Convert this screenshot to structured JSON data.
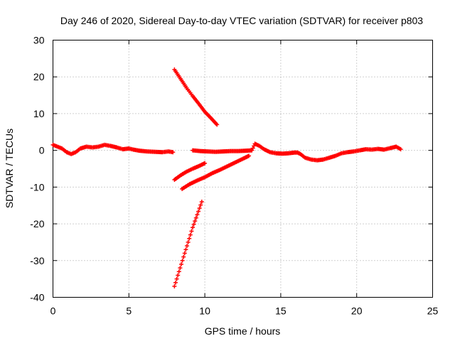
{
  "chart_data": {
    "type": "scatter",
    "title": "Day 246 of 2020, Sidereal Day-to-day VTEC variation (SDTVAR) for receiver p803",
    "xlabel": "GPS time / hours",
    "ylabel": "SDTVAR / TECUs",
    "xlim": [
      0,
      25
    ],
    "ylim": [
      -40,
      30
    ],
    "xticks": [
      0,
      5,
      10,
      15,
      20,
      25
    ],
    "yticks": [
      -40,
      -30,
      -20,
      -10,
      0,
      10,
      20,
      30
    ],
    "grid": true,
    "marker": "plus",
    "color": "#ff0000",
    "series": [
      {
        "points": [
          [
            0.0,
            1.5
          ],
          [
            0.3,
            1.0
          ],
          [
            0.6,
            0.5
          ],
          [
            0.9,
            -0.5
          ],
          [
            1.2,
            -1.0
          ],
          [
            1.5,
            -0.5
          ],
          [
            1.8,
            0.5
          ],
          [
            2.2,
            1.0
          ],
          [
            2.6,
            0.8
          ],
          [
            3.0,
            1.0
          ],
          [
            3.4,
            1.5
          ],
          [
            3.8,
            1.2
          ],
          [
            4.2,
            0.8
          ],
          [
            4.6,
            0.3
          ],
          [
            5.0,
            0.5
          ],
          [
            5.3,
            0.2
          ],
          [
            5.7,
            -0.1
          ],
          [
            6.2,
            -0.3
          ],
          [
            6.7,
            -0.4
          ],
          [
            7.2,
            -0.5
          ],
          [
            7.6,
            -0.3
          ],
          [
            7.9,
            -0.5
          ]
        ]
      },
      {
        "points": [
          [
            8.0,
            22.0
          ],
          [
            8.4,
            19.5
          ],
          [
            8.8,
            17.0
          ],
          [
            9.2,
            14.8
          ],
          [
            9.6,
            12.7
          ],
          [
            10.0,
            10.5
          ],
          [
            10.4,
            8.8
          ],
          [
            10.8,
            7.0
          ]
        ]
      },
      {
        "points": [
          [
            8.0,
            -37.0
          ],
          [
            8.3,
            -33.0
          ],
          [
            8.6,
            -29.0
          ],
          [
            8.9,
            -25.0
          ],
          [
            9.2,
            -21.0
          ],
          [
            9.5,
            -17.5
          ],
          [
            9.8,
            -14.0
          ]
        ]
      },
      {
        "points": [
          [
            8.0,
            -8.0
          ],
          [
            8.4,
            -6.8
          ],
          [
            8.8,
            -5.8
          ],
          [
            9.2,
            -5.0
          ],
          [
            9.6,
            -4.3
          ],
          [
            10.0,
            -3.5
          ]
        ]
      },
      {
        "points": [
          [
            8.5,
            -10.5
          ],
          [
            9.0,
            -9.2
          ],
          [
            9.5,
            -8.2
          ],
          [
            10.0,
            -7.3
          ],
          [
            10.5,
            -6.2
          ],
          [
            11.0,
            -5.3
          ],
          [
            11.5,
            -4.3
          ],
          [
            12.0,
            -3.3
          ],
          [
            12.5,
            -2.3
          ],
          [
            12.9,
            -1.5
          ]
        ]
      },
      {
        "points": [
          [
            9.2,
            0.0
          ],
          [
            9.7,
            -0.2
          ],
          [
            10.2,
            -0.3
          ],
          [
            10.7,
            -0.4
          ],
          [
            11.2,
            -0.3
          ],
          [
            11.7,
            -0.2
          ],
          [
            12.2,
            -0.2
          ],
          [
            12.7,
            -0.1
          ],
          [
            13.1,
            0.0
          ],
          [
            13.3,
            1.8
          ],
          [
            13.6,
            1.2
          ],
          [
            13.9,
            0.3
          ],
          [
            14.3,
            -0.5
          ],
          [
            14.7,
            -0.8
          ],
          [
            15.1,
            -0.9
          ],
          [
            15.5,
            -0.8
          ],
          [
            15.9,
            -0.6
          ],
          [
            16.1,
            -0.6
          ],
          [
            16.3,
            -1.0
          ],
          [
            16.6,
            -2.0
          ],
          [
            17.0,
            -2.5
          ],
          [
            17.4,
            -2.7
          ],
          [
            17.8,
            -2.5
          ],
          [
            18.2,
            -2.0
          ],
          [
            18.6,
            -1.5
          ],
          [
            19.0,
            -0.8
          ],
          [
            19.4,
            -0.5
          ],
          [
            19.8,
            -0.3
          ],
          [
            20.2,
            0.0
          ],
          [
            20.6,
            0.3
          ],
          [
            21.0,
            0.2
          ],
          [
            21.4,
            0.4
          ],
          [
            21.8,
            0.2
          ],
          [
            22.2,
            0.6
          ],
          [
            22.6,
            1.0
          ],
          [
            22.9,
            0.3
          ]
        ]
      }
    ]
  }
}
